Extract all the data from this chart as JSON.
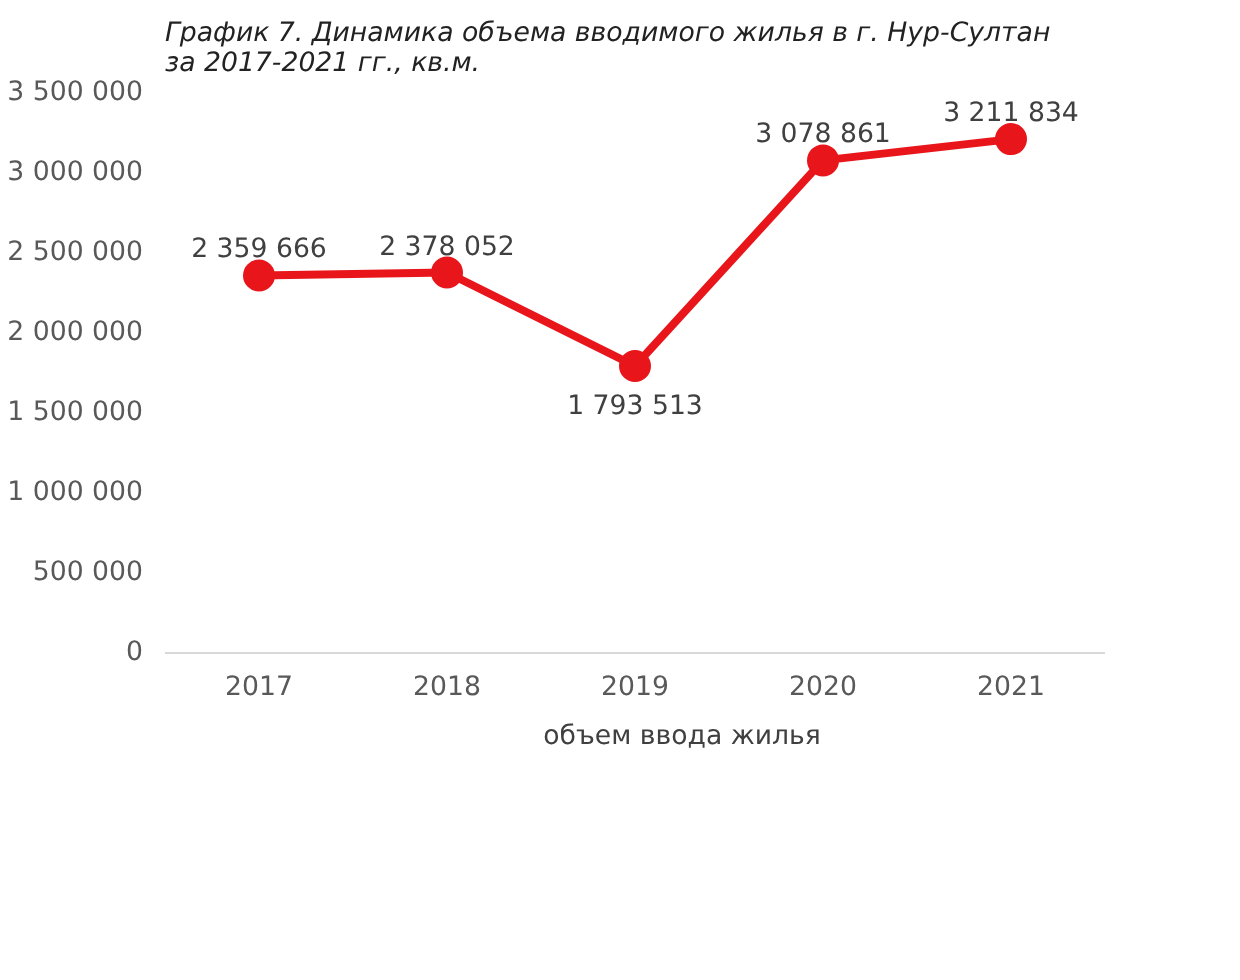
{
  "chart_data": {
    "type": "line",
    "title": "График 7. Динамика объема вводимого жилья в г. Нур-Султан за 2017-2021 гг., кв.м.",
    "categories": [
      "2017",
      "2018",
      "2019",
      "2020",
      "2021"
    ],
    "series": [
      {
        "name": "объем ввода жилья",
        "color": "#e8161b",
        "values": [
          2359666,
          2378052,
          1793513,
          3078861,
          3211834
        ],
        "value_labels": [
          "2 359 666",
          "2 378 052",
          "1 793 513",
          "3 078 861",
          "3 211 834"
        ]
      }
    ],
    "ylim": [
      0,
      3500000
    ],
    "yticks": [
      {
        "value": 0,
        "label": "0"
      },
      {
        "value": 500000,
        "label": "500 000"
      },
      {
        "value": 1000000,
        "label": "1 000 000"
      },
      {
        "value": 1500000,
        "label": "1 500 000"
      },
      {
        "value": 2000000,
        "label": "2 000 000"
      },
      {
        "value": 2500000,
        "label": "2 500 000"
      },
      {
        "value": 3000000,
        "label": "3 000 000"
      },
      {
        "value": 3500000,
        "label": "3 500 000"
      }
    ],
    "grid": false,
    "legend": "bottom",
    "marker": "circle",
    "line_style": "solid"
  }
}
